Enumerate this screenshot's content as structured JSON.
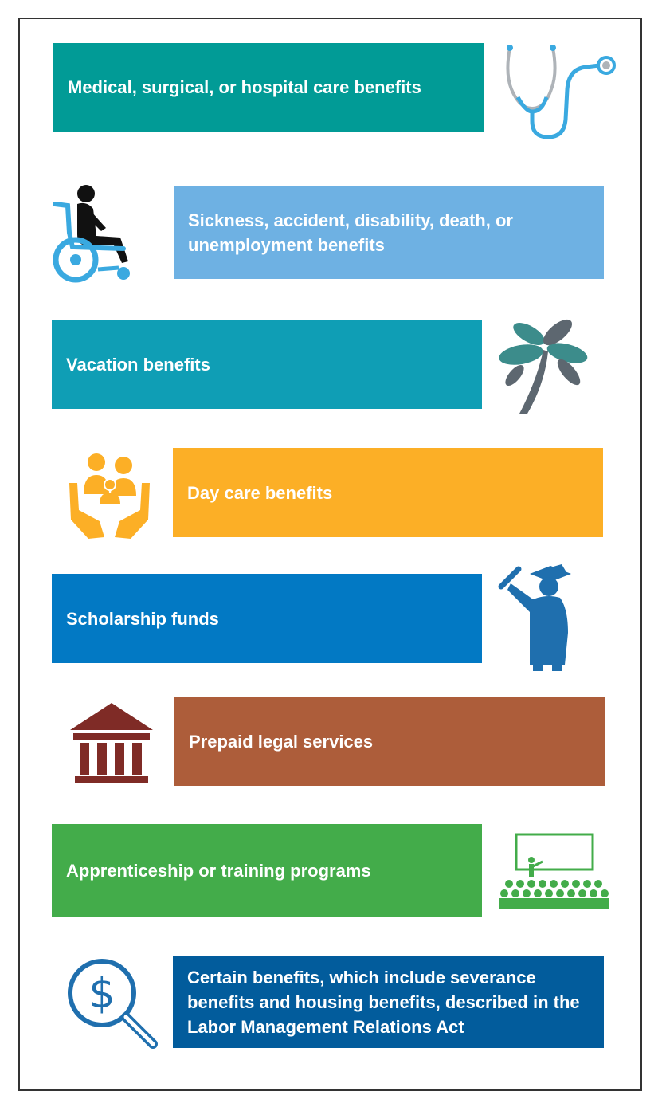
{
  "colors": {
    "medical": "#019B96",
    "sickness": "#6EB1E3",
    "vacation": "#0F9EB5",
    "daycare": "#FCAF26",
    "scholarship": "#0279C4",
    "legal": "#AD5D3A",
    "apprenticeship": "#43AC4A",
    "certain": "#025C9C",
    "icon_blue": "#3AA9E0",
    "icon_teal": "#3C8C8B",
    "icon_gray": "#5D6770",
    "icon_orange": "#FCAF26",
    "icon_brown": "#7F2B26",
    "icon_green": "#43AC4A",
    "icon_navy": "#1F6FAE"
  },
  "items": [
    {
      "text": "Medical, surgical, or hospital care benefits",
      "icon": "stethoscope-icon"
    },
    {
      "text": "Sickness, accident, disability, death, or unemployment benefits",
      "icon": "wheelchair-icon"
    },
    {
      "text": "Vacation benefits",
      "icon": "palm-tree-icon"
    },
    {
      "text": "Day care benefits",
      "icon": "family-in-hands-icon"
    },
    {
      "text": "Scholarship funds",
      "icon": "graduate-icon"
    },
    {
      "text": "Prepaid legal services",
      "icon": "courthouse-icon"
    },
    {
      "text": "Apprenticeship or training programs",
      "icon": "classroom-icon"
    },
    {
      "text": "Certain benefits, which include severance benefits and housing benefits, described in the Labor Management Relations Act",
      "icon": "dollar-magnifier-icon"
    }
  ]
}
